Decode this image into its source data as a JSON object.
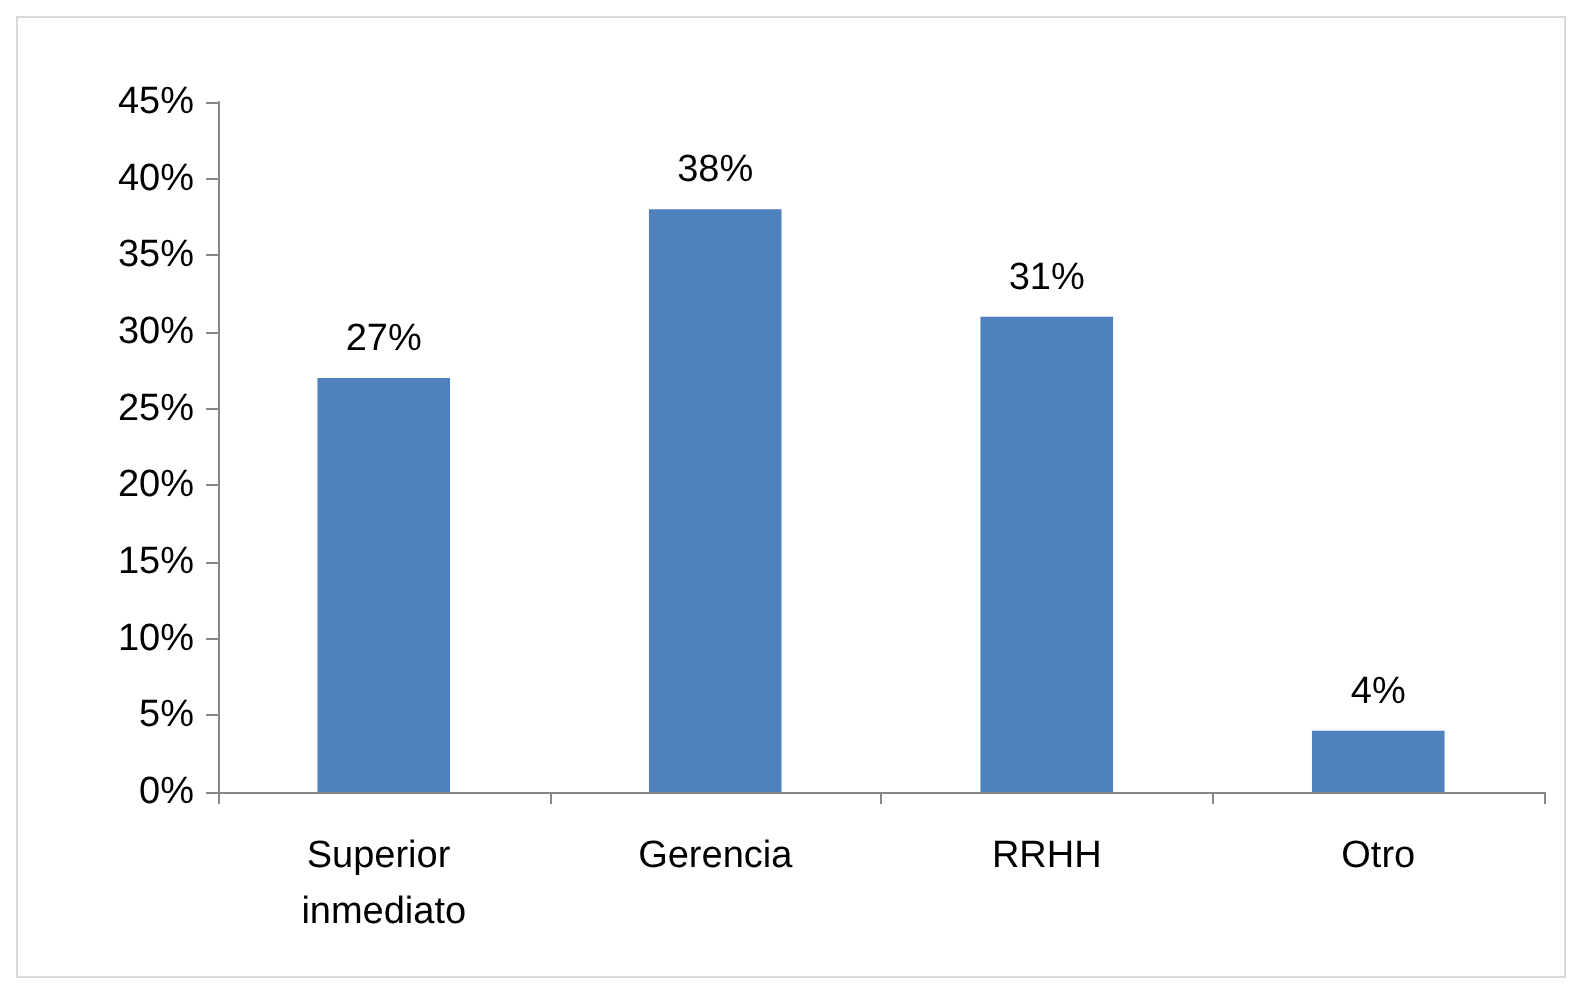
{
  "chart_data": {
    "type": "bar",
    "categories": [
      "Superior inmediato",
      "Gerencia",
      "RRHH",
      "Otro"
    ],
    "values": [
      27,
      38,
      31,
      4
    ],
    "value_labels": [
      "27%",
      "38%",
      "31%",
      "4%"
    ],
    "color": "#4f81bd",
    "ylim": [
      0,
      45
    ],
    "yticks": [
      {
        "value": 0,
        "label": "0%"
      },
      {
        "value": 5,
        "label": "5%"
      },
      {
        "value": 10,
        "label": "10%"
      },
      {
        "value": 15,
        "label": "15%"
      },
      {
        "value": 20,
        "label": "20%"
      },
      {
        "value": 25,
        "label": "25%"
      },
      {
        "value": 30,
        "label": "30%"
      },
      {
        "value": 35,
        "label": "35%"
      },
      {
        "value": 40,
        "label": "40%"
      },
      {
        "value": 45,
        "label": "45%"
      }
    ],
    "grid": false
  }
}
